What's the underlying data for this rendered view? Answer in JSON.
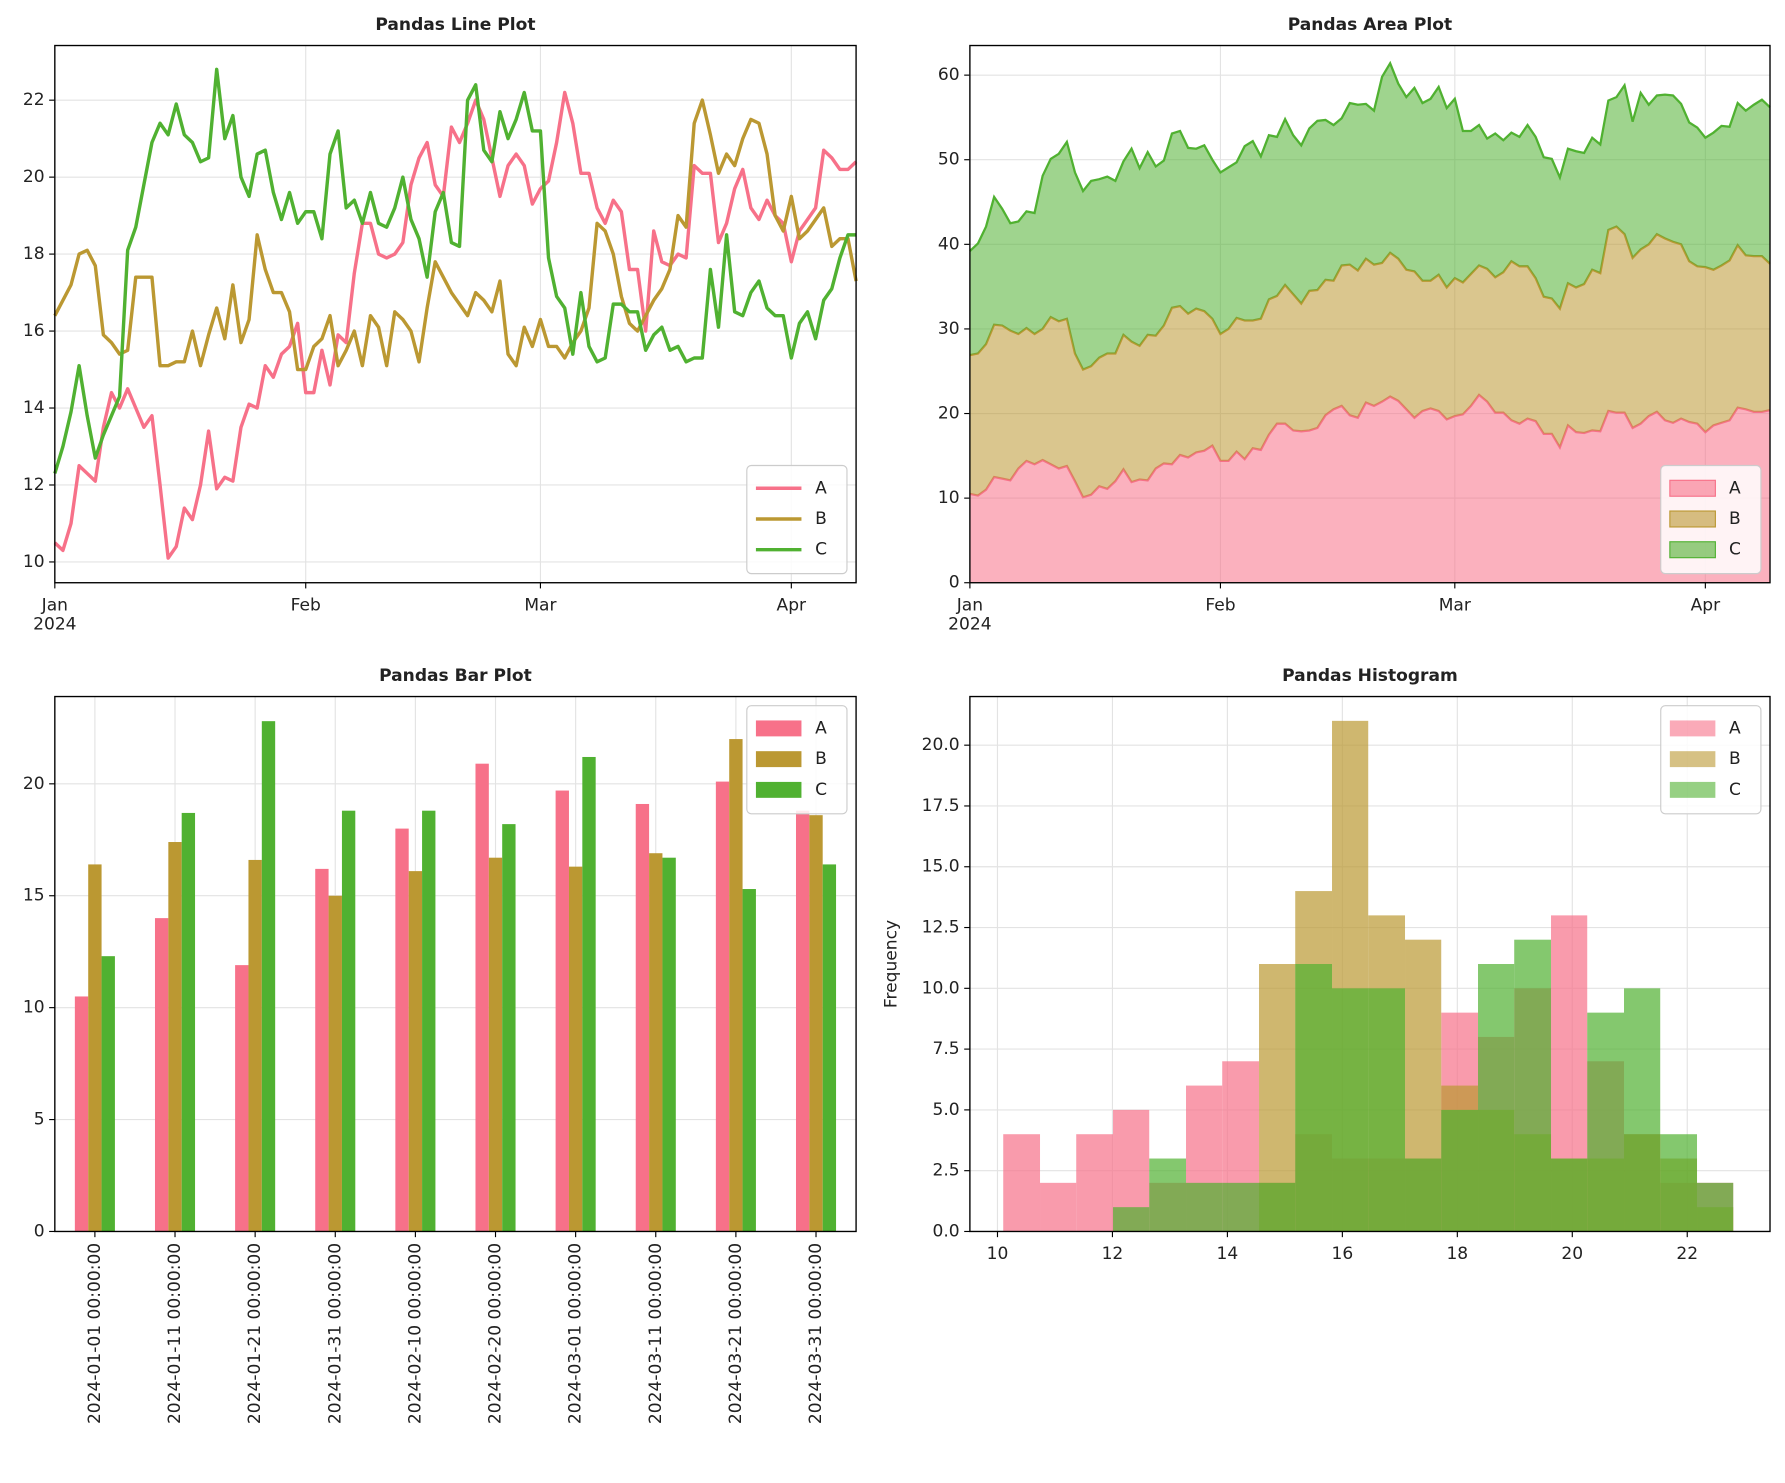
{
  "chart_data": [
    {
      "type": "line",
      "title": "Pandas Line Plot",
      "x": [
        0,
        1,
        2,
        3,
        4,
        5,
        6,
        7,
        8,
        9,
        10,
        11,
        12,
        13,
        14,
        15,
        16,
        17,
        18,
        19,
        20,
        21,
        22,
        23,
        24,
        25,
        26,
        27,
        28,
        29,
        30,
        31,
        32,
        33,
        34,
        35,
        36,
        37,
        38,
        39,
        40,
        41,
        42,
        43,
        44,
        45,
        46,
        47,
        48,
        49,
        50,
        51,
        52,
        53,
        54,
        55,
        56,
        57,
        58,
        59,
        60,
        61,
        62,
        63,
        64,
        65,
        66,
        67,
        68,
        69,
        70,
        71,
        72,
        73,
        74,
        75,
        76,
        77,
        78,
        79,
        80,
        81,
        82,
        83,
        84,
        85,
        86,
        87,
        88,
        89,
        90,
        91,
        92,
        93,
        94,
        95,
        96,
        97,
        98,
        99
      ],
      "series": [
        {
          "name": "A",
          "color": "#f77189",
          "values": [
            10.5,
            10.3,
            11,
            12.5,
            12.3,
            12.1,
            13.5,
            14.4,
            14,
            14.5,
            14,
            13.5,
            13.8,
            12,
            10.1,
            10.4,
            11.4,
            11.1,
            12,
            13.4,
            11.9,
            12.2,
            12.1,
            13.5,
            14.1,
            14,
            15.1,
            14.8,
            15.4,
            15.6,
            16.2,
            14.4,
            14.4,
            15.5,
            14.6,
            15.9,
            15.7,
            17.5,
            18.8,
            18.8,
            18,
            17.9,
            18,
            18.3,
            19.8,
            20.5,
            20.9,
            19.8,
            19.5,
            21.3,
            20.9,
            21.4,
            22,
            21.5,
            20.5,
            19.5,
            20.3,
            20.6,
            20.3,
            19.3,
            19.7,
            19.9,
            20.9,
            22.2,
            21.4,
            20.1,
            20.1,
            19.2,
            18.8,
            19.4,
            19.1,
            17.6,
            17.6,
            16,
            18.6,
            17.8,
            17.7,
            18,
            17.9,
            20.3,
            20.1,
            20.1,
            18.3,
            18.8,
            19.7,
            20.2,
            19.2,
            18.9,
            19.4,
            19,
            18.8,
            17.8,
            18.6,
            18.9,
            19.2,
            20.7,
            20.5,
            20.2,
            20.2,
            20.4
          ]
        },
        {
          "name": "B",
          "color": "#bb9832",
          "values": [
            16.4,
            16.8,
            17.2,
            18,
            18.1,
            17.7,
            15.9,
            15.7,
            15.4,
            15.5,
            17.4,
            17.4,
            17.4,
            15.1,
            15.1,
            15.2,
            15.2,
            16,
            15.1,
            15.9,
            16.6,
            15.8,
            17.2,
            15.7,
            16.3,
            18.5,
            17.6,
            17,
            17,
            16.5,
            15,
            15,
            15.6,
            15.8,
            16.4,
            15.1,
            15.5,
            16,
            15.1,
            16.4,
            16.1,
            15.1,
            16.5,
            16.3,
            16,
            15.2,
            16.6,
            17.8,
            17.4,
            17,
            16.7,
            16.4,
            17,
            16.8,
            16.5,
            17.3,
            15.4,
            15.1,
            16.1,
            15.6,
            16.3,
            15.6,
            15.6,
            15.3,
            15.7,
            16,
            16.6,
            18.8,
            18.6,
            18,
            16.9,
            16.2,
            16,
            16.4,
            16.8,
            17.1,
            17.6,
            19,
            18.7,
            21.4,
            22,
            21.1,
            20.1,
            20.6,
            20.3,
            21,
            21.5,
            21.4,
            20.6,
            19,
            18.6,
            19.5,
            18.4,
            18.6,
            18.9,
            19.2,
            18.2,
            18.4,
            18.4,
            17.3
          ]
        },
        {
          "name": "C",
          "color": "#50b131",
          "values": [
            12.3,
            13,
            13.9,
            15.1,
            13.8,
            12.7,
            13.3,
            13.8,
            14.3,
            18.1,
            18.7,
            19.8,
            20.9,
            21.4,
            21.1,
            21.9,
            21.1,
            20.9,
            20.4,
            20.5,
            22.8,
            21,
            21.6,
            20,
            19.5,
            20.6,
            20.7,
            19.6,
            18.9,
            19.6,
            18.8,
            19.1,
            19.1,
            18.4,
            20.6,
            21.2,
            19.2,
            19.4,
            18.8,
            19.6,
            18.8,
            18.7,
            19.2,
            20,
            18.9,
            18.4,
            17.4,
            19.1,
            19.6,
            18.3,
            18.2,
            22,
            22.4,
            20.7,
            20.4,
            21.7,
            21,
            21.5,
            22.2,
            21.2,
            21.2,
            17.9,
            16.9,
            16.6,
            15.4,
            17,
            15.6,
            15.2,
            15.3,
            16.7,
            16.7,
            16.5,
            16.5,
            15.5,
            15.9,
            16.1,
            15.5,
            15.6,
            15.2,
            15.3,
            15.3,
            17.6,
            16.1,
            18.5,
            16.5,
            16.4,
            17,
            17.3,
            16.6,
            16.4,
            16.4,
            15.3,
            16.2,
            16.5,
            15.8,
            16.8,
            17.1,
            17.9,
            18.5,
            18.5
          ]
        }
      ],
      "xlim": [
        0,
        99
      ],
      "xticks": [
        {
          "value": 0,
          "label": "Jan\n2024"
        },
        {
          "value": 31,
          "label": "Feb"
        },
        {
          "value": 60,
          "label": "Mar"
        },
        {
          "value": 91,
          "label": "Apr"
        }
      ],
      "ylim": [
        9.46,
        23.42
      ],
      "yticks": [
        10,
        12,
        14,
        16,
        18,
        20,
        22
      ],
      "grid": true,
      "legend": "lower right"
    },
    {
      "type": "area",
      "title": "Pandas Area Plot",
      "x": [
        0,
        1,
        2,
        3,
        4,
        5,
        6,
        7,
        8,
        9,
        10,
        11,
        12,
        13,
        14,
        15,
        16,
        17,
        18,
        19,
        20,
        21,
        22,
        23,
        24,
        25,
        26,
        27,
        28,
        29,
        30,
        31,
        32,
        33,
        34,
        35,
        36,
        37,
        38,
        39,
        40,
        41,
        42,
        43,
        44,
        45,
        46,
        47,
        48,
        49,
        50,
        51,
        52,
        53,
        54,
        55,
        56,
        57,
        58,
        59,
        60,
        61,
        62,
        63,
        64,
        65,
        66,
        67,
        68,
        69,
        70,
        71,
        72,
        73,
        74,
        75,
        76,
        77,
        78,
        79,
        80,
        81,
        82,
        83,
        84,
        85,
        86,
        87,
        88,
        89,
        90,
        91,
        92,
        93,
        94,
        95,
        96,
        97,
        98,
        99
      ],
      "series": [
        {
          "name": "A",
          "color": "#f77189",
          "values": [
            10.5,
            10.3,
            11,
            12.5,
            12.3,
            12.1,
            13.5,
            14.4,
            14,
            14.5,
            14,
            13.5,
            13.8,
            12,
            10.1,
            10.4,
            11.4,
            11.1,
            12,
            13.4,
            11.9,
            12.2,
            12.1,
            13.5,
            14.1,
            14,
            15.1,
            14.8,
            15.4,
            15.6,
            16.2,
            14.4,
            14.4,
            15.5,
            14.6,
            15.9,
            15.7,
            17.5,
            18.8,
            18.8,
            18,
            17.9,
            18,
            18.3,
            19.8,
            20.5,
            20.9,
            19.8,
            19.5,
            21.3,
            20.9,
            21.4,
            22,
            21.5,
            20.5,
            19.5,
            20.3,
            20.6,
            20.3,
            19.3,
            19.7,
            19.9,
            20.9,
            22.2,
            21.4,
            20.1,
            20.1,
            19.2,
            18.8,
            19.4,
            19.1,
            17.6,
            17.6,
            16,
            18.6,
            17.8,
            17.7,
            18,
            17.9,
            20.3,
            20.1,
            20.1,
            18.3,
            18.8,
            19.7,
            20.2,
            19.2,
            18.9,
            19.4,
            19,
            18.8,
            17.8,
            18.6,
            18.9,
            19.2,
            20.7,
            20.5,
            20.2,
            20.2,
            20.4
          ]
        },
        {
          "name": "B",
          "color": "#bb9832",
          "values": [
            16.4,
            16.8,
            17.2,
            18,
            18.1,
            17.7,
            15.9,
            15.7,
            15.4,
            15.5,
            17.4,
            17.4,
            17.4,
            15.1,
            15.1,
            15.2,
            15.2,
            16,
            15.1,
            15.9,
            16.6,
            15.8,
            17.2,
            15.7,
            16.3,
            18.5,
            17.6,
            17,
            17,
            16.5,
            15,
            15,
            15.6,
            15.8,
            16.4,
            15.1,
            15.5,
            16,
            15.1,
            16.4,
            16.1,
            15.1,
            16.5,
            16.3,
            16,
            15.2,
            16.6,
            17.8,
            17.4,
            17,
            16.7,
            16.4,
            17,
            16.8,
            16.5,
            17.3,
            15.4,
            15.1,
            16.1,
            15.6,
            16.3,
            15.6,
            15.6,
            15.3,
            15.7,
            16,
            16.6,
            18.8,
            18.6,
            18,
            16.9,
            16.2,
            16,
            16.4,
            16.8,
            17.1,
            17.6,
            19,
            18.7,
            21.4,
            22,
            21.1,
            20.1,
            20.6,
            20.3,
            21,
            21.5,
            21.4,
            20.6,
            19,
            18.6,
            19.5,
            18.4,
            18.6,
            18.9,
            19.2,
            18.2,
            18.4,
            18.4,
            17.3
          ]
        },
        {
          "name": "C",
          "color": "#50b131",
          "values": [
            12.3,
            13,
            13.9,
            15.1,
            13.8,
            12.7,
            13.3,
            13.8,
            14.3,
            18.1,
            18.7,
            19.8,
            20.9,
            21.4,
            21.1,
            21.9,
            21.1,
            20.9,
            20.4,
            20.5,
            22.8,
            21,
            21.6,
            20,
            19.5,
            20.6,
            20.7,
            19.6,
            18.9,
            19.6,
            18.8,
            19.1,
            19.1,
            18.4,
            20.6,
            21.2,
            19.2,
            19.4,
            18.8,
            19.6,
            18.8,
            18.7,
            19.2,
            20,
            18.9,
            18.4,
            17.4,
            19.1,
            19.6,
            18.3,
            18.2,
            22,
            22.4,
            20.7,
            20.4,
            21.7,
            21,
            21.5,
            22.2,
            21.2,
            21.2,
            17.9,
            16.9,
            16.6,
            15.4,
            17,
            15.6,
            15.2,
            15.3,
            16.7,
            16.7,
            16.5,
            16.5,
            15.5,
            15.9,
            16.1,
            15.5,
            15.6,
            15.2,
            15.3,
            15.3,
            17.6,
            16.1,
            18.5,
            16.5,
            16.4,
            17,
            17.3,
            16.6,
            16.4,
            16.4,
            15.3,
            16.2,
            16.5,
            15.8,
            16.8,
            17.1,
            17.9,
            18.5,
            18.5
          ]
        }
      ],
      "xlim": [
        0,
        99
      ],
      "xticks": [
        {
          "value": 0,
          "label": "Jan\n2024"
        },
        {
          "value": 31,
          "label": "Feb"
        },
        {
          "value": 60,
          "label": "Mar"
        },
        {
          "value": 91,
          "label": "Apr"
        }
      ],
      "ylim": [
        0,
        63.5
      ],
      "yticks": [
        0,
        10,
        20,
        30,
        40,
        50,
        60
      ],
      "grid": true,
      "legend": "lower right"
    },
    {
      "type": "bar",
      "title": "Pandas Bar Plot",
      "categories": [
        "2024-01-01 00:00:00",
        "2024-01-11 00:00:00",
        "2024-01-21 00:00:00",
        "2024-01-31 00:00:00",
        "2024-02-10 00:00:00",
        "2024-02-20 00:00:00",
        "2024-03-01 00:00:00",
        "2024-03-11 00:00:00",
        "2024-03-21 00:00:00",
        "2024-03-31 00:00:00"
      ],
      "series": [
        {
          "name": "A",
          "color": "#f77189",
          "values": [
            10.5,
            14,
            11.9,
            16.2,
            18,
            20.9,
            19.7,
            19.1,
            20.1,
            18.8
          ]
        },
        {
          "name": "B",
          "color": "#bb9832",
          "values": [
            16.4,
            17.4,
            16.6,
            15,
            16.1,
            16.7,
            16.3,
            16.9,
            22,
            18.6
          ]
        },
        {
          "name": "C",
          "color": "#50b131",
          "values": [
            12.3,
            18.7,
            22.8,
            18.8,
            18.8,
            18.2,
            21.2,
            16.7,
            15.3,
            16.4
          ]
        }
      ],
      "ylim": [
        0,
        23.9
      ],
      "yticks": [
        0,
        5,
        10,
        15,
        20
      ],
      "grid": true,
      "legend": "upper right"
    },
    {
      "type": "histogram",
      "title": "Pandas Histogram",
      "ylabel": "Frequency",
      "bins": [
        10.1,
        10.74,
        11.37,
        12.01,
        12.64,
        13.28,
        13.91,
        14.55,
        15.18,
        15.82,
        16.45,
        17.09,
        17.72,
        18.36,
        18.99,
        19.63,
        20.26,
        20.9,
        21.53,
        22.17,
        22.8
      ],
      "series": [
        {
          "name": "A",
          "color": "#f77189",
          "values": [
            4,
            2,
            4,
            5,
            2,
            6,
            7,
            2,
            4,
            3,
            3,
            3,
            9,
            8,
            10,
            13,
            7,
            4,
            2,
            2
          ]
        },
        {
          "name": "B",
          "color": "#bb9832",
          "values": [
            0,
            0,
            0,
            0,
            0,
            0,
            0,
            11,
            14,
            21,
            13,
            12,
            6,
            5,
            4,
            3,
            3,
            4,
            3,
            1
          ]
        },
        {
          "name": "C",
          "color": "#50b131",
          "values": [
            0,
            0,
            0,
            1,
            3,
            2,
            2,
            2,
            11,
            10,
            10,
            3,
            5,
            11,
            12,
            3,
            9,
            10,
            4,
            2
          ]
        }
      ],
      "xlim": [
        9.52,
        23.44
      ],
      "xticks": [
        10,
        12,
        14,
        16,
        18,
        20,
        22
      ],
      "ylim": [
        0,
        22
      ],
      "yticks": [
        {
          "value": 0,
          "label": "0.0"
        },
        2.5,
        {
          "value": 5,
          "label": "5.0"
        },
        7.5,
        {
          "value": 10,
          "label": "10.0"
        },
        12.5,
        {
          "value": 15,
          "label": "15.0"
        },
        17.5,
        {
          "value": 20,
          "label": "20.0"
        }
      ],
      "grid": true,
      "legend": "upper right"
    }
  ]
}
